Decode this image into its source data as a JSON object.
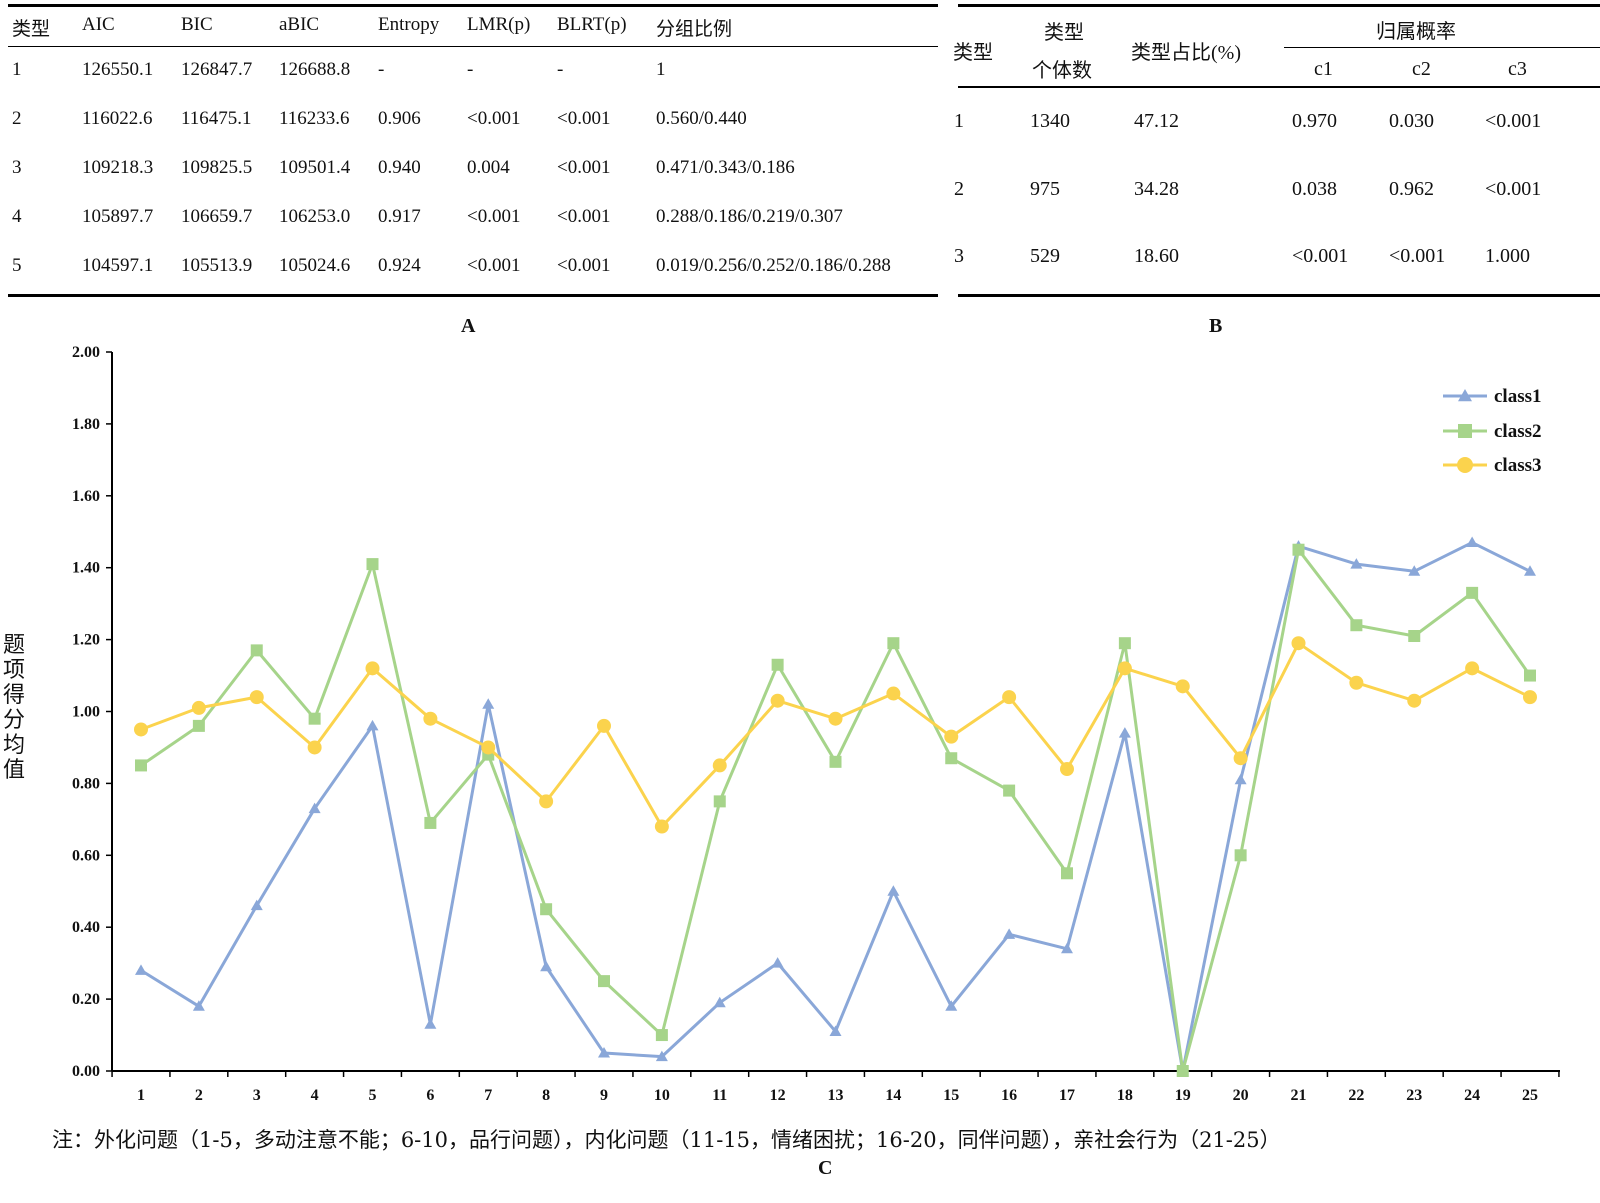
{
  "tableA": {
    "headers": [
      "类型",
      "AIC",
      "BIC",
      "aBIC",
      "Entropy",
      "LMR(p)",
      "BLRT(p)",
      "分组比例"
    ],
    "rows": [
      [
        "1",
        "126550.1",
        "126847.7",
        "126688.8",
        "-",
        "-",
        "-",
        "1"
      ],
      [
        "2",
        "116022.6",
        "116475.1",
        "116233.6",
        "0.906",
        "<0.001",
        "<0.001",
        "0.560/0.440"
      ],
      [
        "3",
        "109218.3",
        "109825.5",
        "109501.4",
        "0.940",
        "0.004",
        "<0.001",
        "0.471/0.343/0.186"
      ],
      [
        "4",
        "105897.7",
        "106659.7",
        "106253.0",
        "0.917",
        "<0.001",
        "<0.001",
        "0.288/0.186/0.219/0.307"
      ],
      [
        "5",
        "104597.1",
        "105513.9",
        "105024.6",
        "0.924",
        "<0.001",
        "<0.001",
        "0.019/0.256/0.252/0.186/0.288"
      ]
    ],
    "label": "A"
  },
  "tableB": {
    "headers": {
      "type": "类型",
      "count_line1": "类型",
      "count_line2": "个体数",
      "share": "类型占比(%)",
      "prob_group": "归属概率",
      "c1": "c1",
      "c2": "c2",
      "c3": "c3"
    },
    "rows": [
      [
        "1",
        "1340",
        "47.12",
        "0.970",
        "0.030",
        "<0.001"
      ],
      [
        "2",
        "975",
        "34.28",
        "0.038",
        "0.962",
        "<0.001"
      ],
      [
        "3",
        "529",
        "18.60",
        "<0.001",
        "<0.001",
        "1.000"
      ]
    ],
    "label": "B"
  },
  "chart_data": {
    "type": "line",
    "ylabel": "题项得分均值",
    "xlabel": "",
    "ylim": [
      0,
      2.0
    ],
    "yticks": [
      "0.00",
      "0.20",
      "0.40",
      "0.60",
      "0.80",
      "1.00",
      "1.20",
      "1.40",
      "1.60",
      "1.80",
      "2.00"
    ],
    "categories": [
      "1",
      "2",
      "3",
      "4",
      "5",
      "6",
      "7",
      "8",
      "9",
      "10",
      "11",
      "12",
      "13",
      "14",
      "15",
      "16",
      "17",
      "18",
      "19",
      "20",
      "21",
      "22",
      "23",
      "24",
      "25"
    ],
    "legend_position": "top-right",
    "series": [
      {
        "name": "class1",
        "color": "#8aa7d8",
        "marker": "triangle",
        "values": [
          0.28,
          0.18,
          0.46,
          0.73,
          0.96,
          0.13,
          1.02,
          0.29,
          0.05,
          0.04,
          0.19,
          0.3,
          0.11,
          0.5,
          0.18,
          0.38,
          0.34,
          0.94,
          0.0,
          0.81,
          1.46,
          1.41,
          1.39,
          1.47,
          1.39
        ]
      },
      {
        "name": "class2",
        "color": "#a6d48a",
        "marker": "square",
        "values": [
          0.85,
          0.96,
          1.17,
          0.98,
          1.41,
          0.69,
          0.88,
          0.45,
          0.25,
          0.1,
          0.75,
          1.13,
          0.86,
          1.19,
          0.87,
          0.78,
          0.55,
          1.19,
          0.0,
          0.6,
          1.45,
          1.24,
          1.21,
          1.33,
          1.1
        ]
      },
      {
        "name": "class3",
        "color": "#fbd34d",
        "marker": "circle",
        "values": [
          0.95,
          1.01,
          1.04,
          0.9,
          1.12,
          0.98,
          0.9,
          0.75,
          0.96,
          0.68,
          0.85,
          1.03,
          0.98,
          1.05,
          0.93,
          1.04,
          0.84,
          1.12,
          1.07,
          0.87,
          1.19,
          1.08,
          1.03,
          1.12,
          1.04
        ]
      }
    ]
  },
  "note": "注：外化问题（1-5，多动注意不能；6-10，品行问题），内化问题（11-15，情绪困扰；16-20，同伴问题），亲社会行为（21-25）",
  "chart_label": "C"
}
